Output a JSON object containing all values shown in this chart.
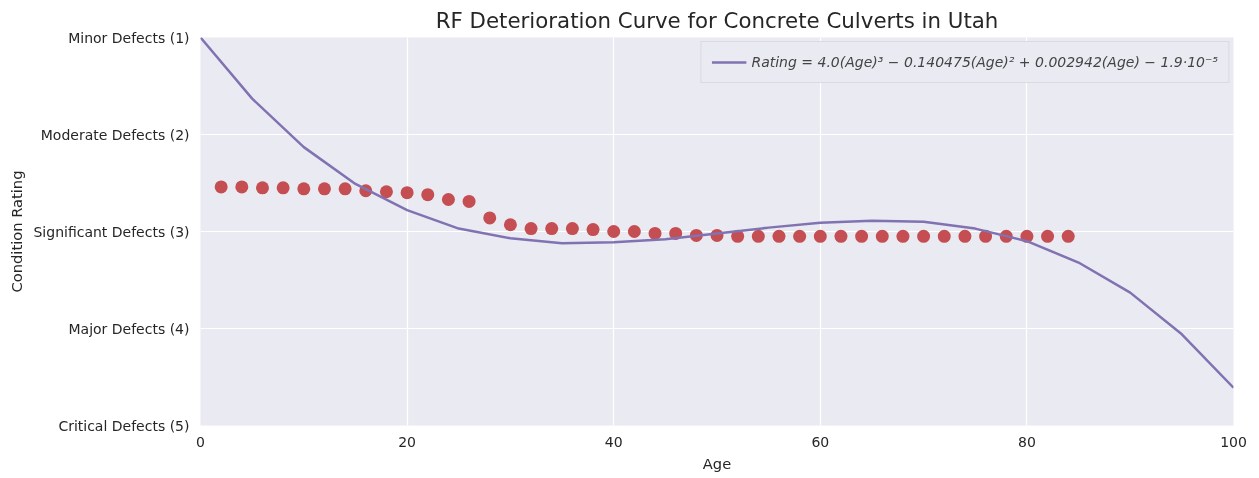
{
  "chart_data": {
    "type": "line",
    "title": "RF Deterioration Curve for Concrete Culverts in Utah",
    "xlabel": "Age",
    "ylabel": "Condition Rating",
    "xlim": [
      0,
      100
    ],
    "xticks": [
      0,
      20,
      40,
      60,
      80,
      100
    ],
    "ylim": [
      5,
      1
    ],
    "yticks": [
      {
        "value": 1,
        "label": "Minor Defects (1)"
      },
      {
        "value": 2,
        "label": "Moderate Defects (2)"
      },
      {
        "value": 3,
        "label": "Significant Defects (3)"
      },
      {
        "value": 4,
        "label": "Major Defects (4)"
      },
      {
        "value": 5,
        "label": "Critical Defects (5)"
      }
    ],
    "grid": true,
    "legend": "top right",
    "series": [
      {
        "type": "scatter",
        "color": "#c44e52",
        "marker": "circle",
        "x": [
          2,
          4,
          6,
          8,
          10,
          12,
          14,
          16,
          18,
          20,
          22,
          24,
          26,
          28,
          30,
          32,
          34,
          36,
          38,
          40,
          42,
          44,
          46,
          48,
          50,
          52,
          54,
          56,
          58,
          60,
          62,
          64,
          66,
          68,
          70,
          72,
          74,
          76,
          78,
          80,
          82,
          84
        ],
        "values": [
          2.54,
          2.54,
          2.55,
          2.55,
          2.56,
          2.56,
          2.56,
          2.58,
          2.59,
          2.6,
          2.62,
          2.67,
          2.69,
          2.86,
          2.93,
          2.97,
          2.97,
          2.97,
          2.98,
          3.0,
          3.0,
          3.02,
          3.02,
          3.04,
          3.04,
          3.05,
          3.05,
          3.05,
          3.05,
          3.05,
          3.05,
          3.05,
          3.05,
          3.05,
          3.05,
          3.05,
          3.05,
          3.05,
          3.05,
          3.05,
          3.05,
          3.05
        ]
      },
      {
        "name": "Rating = 4.0(Age)³ − 0.140475(Age)² + 0.002942(Age) − 1.9·10⁻⁵",
        "color": "#8172b2",
        "line_style": "solid",
        "x": [
          0,
          5,
          10,
          15,
          20,
          25,
          30,
          35,
          40,
          45,
          50,
          55,
          60,
          65,
          70,
          75,
          80,
          85,
          90,
          95,
          100
        ],
        "values": [
          1.0,
          1.63,
          2.13,
          2.51,
          2.78,
          2.97,
          3.07,
          3.12,
          3.11,
          3.08,
          3.02,
          2.96,
          2.91,
          2.89,
          2.9,
          2.97,
          3.1,
          3.32,
          3.63,
          4.06,
          4.61
        ]
      }
    ]
  }
}
